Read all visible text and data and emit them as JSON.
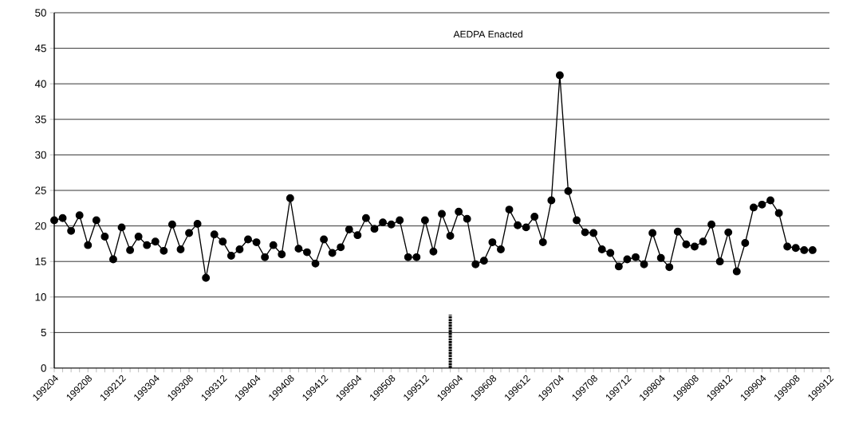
{
  "chart_data": {
    "type": "line",
    "x": [
      "1992-04",
      "1992-05",
      "1992-06",
      "1992-07",
      "1992-08",
      "1992-09",
      "1992-10",
      "1992-11",
      "1992-12",
      "1993-01",
      "1993-02",
      "1993-03",
      "1993-04",
      "1993-05",
      "1993-06",
      "1993-07",
      "1993-08",
      "1993-09",
      "1993-10",
      "1993-11",
      "1993-12",
      "1994-01",
      "1994-02",
      "1994-03",
      "1994-04",
      "1994-05",
      "1994-06",
      "1994-07",
      "1994-08",
      "1994-09",
      "1994-10",
      "1994-11",
      "1994-12",
      "1995-01",
      "1995-02",
      "1995-03",
      "1995-04",
      "1995-05",
      "1995-06",
      "1995-07",
      "1995-08",
      "1995-09",
      "1995-10",
      "1995-11",
      "1995-12",
      "1996-01",
      "1996-02",
      "1996-03",
      "1996-04",
      "1996-05",
      "1996-06",
      "1996-07",
      "1996-08",
      "1996-09",
      "1996-10",
      "1996-11",
      "1996-12",
      "1997-01",
      "1997-02",
      "1997-03",
      "1997-04",
      "1997-05",
      "1997-06",
      "1997-07",
      "1997-08",
      "1997-09",
      "1997-10",
      "1997-11",
      "1997-12",
      "1998-01",
      "1998-02",
      "1998-03",
      "1998-04",
      "1998-05",
      "1998-06",
      "1998-07",
      "1998-08",
      "1998-09",
      "1998-10",
      "1998-11",
      "1998-12",
      "1999-01",
      "1999-02",
      "1999-03",
      "1999-04",
      "1999-05",
      "1999-06",
      "1999-07",
      "1999-08",
      "1999-09",
      "1999-10"
    ],
    "values": [
      20.8,
      21.1,
      19.3,
      21.5,
      17.3,
      20.8,
      18.5,
      15.3,
      19.8,
      16.6,
      18.5,
      17.3,
      17.8,
      16.5,
      20.2,
      16.7,
      19.0,
      20.3,
      12.7,
      18.8,
      17.8,
      15.8,
      16.7,
      18.1,
      17.7,
      15.6,
      17.3,
      16.0,
      23.9,
      16.8,
      16.3,
      14.7,
      18.1,
      16.2,
      17.0,
      19.5,
      18.7,
      21.1,
      19.6,
      20.5,
      20.2,
      20.8,
      15.6,
      15.6,
      20.8,
      16.4,
      21.7,
      18.6,
      22.0,
      21.0,
      14.6,
      15.1,
      17.7,
      16.7,
      22.3,
      20.1,
      19.8,
      21.3,
      17.7,
      23.6,
      41.2,
      24.9,
      20.8,
      19.1,
      19.0,
      16.7,
      16.2,
      14.3,
      15.3,
      15.6,
      14.6,
      19.0,
      15.5,
      14.2,
      19.2,
      17.4,
      17.1,
      17.8,
      20.2,
      15.0,
      19.1,
      13.6,
      17.6,
      22.6,
      23.0,
      23.6,
      21.8,
      17.1,
      16.9,
      16.6,
      16.6
    ],
    "color": "#000000",
    "marker": "circle",
    "line_style": "solid",
    "grid": "y",
    "xlim": [
      "1992-04",
      "1999-12"
    ],
    "xticks": [
      {
        "value": "1992-04",
        "label": "199204"
      },
      {
        "value": "1992-05",
        "label": null
      },
      {
        "value": "1992-06",
        "label": null
      },
      {
        "value": "1992-07",
        "label": null
      },
      {
        "value": "1992-08",
        "label": "199208"
      },
      {
        "value": "1992-09",
        "label": null
      },
      {
        "value": "1992-10",
        "label": null
      },
      {
        "value": "1992-11",
        "label": null
      },
      {
        "value": "1992-12",
        "label": "199212"
      },
      {
        "value": "1993-01",
        "label": null
      },
      {
        "value": "1993-02",
        "label": null
      },
      {
        "value": "1993-03",
        "label": null
      },
      {
        "value": "1993-04",
        "label": "199304"
      },
      {
        "value": "1993-05",
        "label": null
      },
      {
        "value": "1993-06",
        "label": null
      },
      {
        "value": "1993-07",
        "label": null
      },
      {
        "value": "1993-08",
        "label": "199308"
      },
      {
        "value": "1993-09",
        "label": null
      },
      {
        "value": "1993-10",
        "label": null
      },
      {
        "value": "1993-11",
        "label": null
      },
      {
        "value": "1993-12",
        "label": "199312"
      },
      {
        "value": "1994-01",
        "label": null
      },
      {
        "value": "1994-02",
        "label": null
      },
      {
        "value": "1994-03",
        "label": null
      },
      {
        "value": "1994-04",
        "label": "199404"
      },
      {
        "value": "1994-05",
        "label": null
      },
      {
        "value": "1994-06",
        "label": null
      },
      {
        "value": "1994-07",
        "label": null
      },
      {
        "value": "1994-08",
        "label": "199408"
      },
      {
        "value": "1994-09",
        "label": null
      },
      {
        "value": "1994-10",
        "label": null
      },
      {
        "value": "1994-11",
        "label": null
      },
      {
        "value": "1994-12",
        "label": "199412"
      },
      {
        "value": "1995-01",
        "label": null
      },
      {
        "value": "1995-02",
        "label": null
      },
      {
        "value": "1995-03",
        "label": null
      },
      {
        "value": "1995-04",
        "label": "199504"
      },
      {
        "value": "1995-05",
        "label": null
      },
      {
        "value": "1995-06",
        "label": null
      },
      {
        "value": "1995-07",
        "label": null
      },
      {
        "value": "1995-08",
        "label": "199508"
      },
      {
        "value": "1995-09",
        "label": null
      },
      {
        "value": "1995-10",
        "label": null
      },
      {
        "value": "1995-11",
        "label": null
      },
      {
        "value": "1995-12",
        "label": "199512"
      },
      {
        "value": "1996-01",
        "label": null
      },
      {
        "value": "1996-02",
        "label": null
      },
      {
        "value": "1996-03",
        "label": null
      },
      {
        "value": "1996-04",
        "label": "199604"
      },
      {
        "value": "1996-05",
        "label": null
      },
      {
        "value": "1996-06",
        "label": null
      },
      {
        "value": "1996-07",
        "label": null
      },
      {
        "value": "1996-08",
        "label": "199608"
      },
      {
        "value": "1996-09",
        "label": null
      },
      {
        "value": "1996-10",
        "label": null
      },
      {
        "value": "1996-11",
        "label": null
      },
      {
        "value": "1996-12",
        "label": "199612"
      },
      {
        "value": "1997-01",
        "label": null
      },
      {
        "value": "1997-02",
        "label": null
      },
      {
        "value": "1997-03",
        "label": null
      },
      {
        "value": "1997-04",
        "label": "199704"
      },
      {
        "value": "1997-05",
        "label": null
      },
      {
        "value": "1997-06",
        "label": null
      },
      {
        "value": "1997-07",
        "label": null
      },
      {
        "value": "1997-08",
        "label": "199708"
      },
      {
        "value": "1997-09",
        "label": null
      },
      {
        "value": "1997-10",
        "label": null
      },
      {
        "value": "1997-11",
        "label": null
      },
      {
        "value": "1997-12",
        "label": "199712"
      },
      {
        "value": "1998-01",
        "label": null
      },
      {
        "value": "1998-02",
        "label": null
      },
      {
        "value": "1998-03",
        "label": null
      },
      {
        "value": "1998-04",
        "label": "199804"
      },
      {
        "value": "1998-05",
        "label": null
      },
      {
        "value": "1998-06",
        "label": null
      },
      {
        "value": "1998-07",
        "label": null
      },
      {
        "value": "1998-08",
        "label": "199808"
      },
      {
        "value": "1998-09",
        "label": null
      },
      {
        "value": "1998-10",
        "label": null
      },
      {
        "value": "1998-11",
        "label": null
      },
      {
        "value": "1998-12",
        "label": "199812"
      },
      {
        "value": "1999-01",
        "label": null
      },
      {
        "value": "1999-02",
        "label": null
      },
      {
        "value": "1999-03",
        "label": null
      },
      {
        "value": "1999-04",
        "label": "199904"
      },
      {
        "value": "1999-05",
        "label": null
      },
      {
        "value": "1999-06",
        "label": null
      },
      {
        "value": "1999-07",
        "label": null
      },
      {
        "value": "1999-08",
        "label": "199908"
      },
      {
        "value": "1999-09",
        "label": null
      },
      {
        "value": "1999-10",
        "label": null
      },
      {
        "value": "1999-11",
        "label": null
      },
      {
        "value": "1999-12",
        "label": "199912"
      }
    ],
    "ylim": [
      0,
      50
    ],
    "yticks": [
      0,
      5,
      10,
      15,
      20,
      25,
      30,
      35,
      40,
      45,
      50
    ],
    "ref_lines": [
      {
        "axis": "x",
        "value": "1996-03",
        "label": "AEDPA Enacted",
        "line_style": "dashed"
      }
    ]
  }
}
